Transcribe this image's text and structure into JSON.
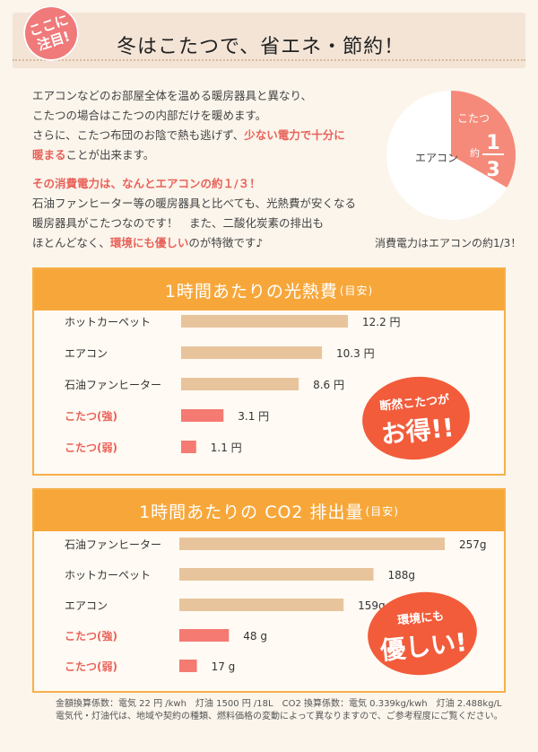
{
  "header": {
    "badge_line1": "ここに",
    "badge_line2": "注目!",
    "title": "冬はこたつで、省エネ・節約！"
  },
  "intro": {
    "p1_l1": "エアコンなどのお部屋全体を温める暖房器具と異なり、",
    "p1_l2": "こたつの場合はこたつの内部だけを暖めます。",
    "p1_l3a": "さらに、こたつ布団のお陰で熱も逃げず、",
    "p1_l3b": "少ない電力で十分に",
    "p1_l4a": "暖まる",
    "p1_l4b": "ことが出来ます。",
    "p2_l1": "その消費電力は、なんとエアコンの約１/３！",
    "p2_l2": "石油ファンヒーター等の暖房器具と比べても、光熱費が安くなる",
    "p2_l3": "暖房器具がこたつなのです！　また、二酸化炭素の排出も",
    "p2_l4a": "ほとんどなく、",
    "p2_l4b": "環境にも優しい",
    "p2_l4c": "のが特徴です♪"
  },
  "pie": {
    "aircon_label": "エアコン",
    "kotatsu_label": "こたつ",
    "approx": "約",
    "numerator": "1",
    "denominator": "3",
    "caption": "消費電力はエアコンの約1/3！",
    "kotatsu_color": "#f58a7a",
    "aircon_color": "#ffffff"
  },
  "chart_data": [
    {
      "type": "bar",
      "title": "1時間あたりの光熱費",
      "title_suffix": "(目安)",
      "categories": [
        "ホットカーペット",
        "エアコン",
        "石油ファンヒーター",
        "こたつ(強)",
        "こたつ(弱)"
      ],
      "values": [
        12.2,
        10.3,
        8.6,
        3.1,
        1.1
      ],
      "value_labels": [
        "12.2 円",
        "10.3 円",
        "8.6 円",
        "3.1 円",
        "1.1 円"
      ],
      "highlight": [
        false,
        false,
        false,
        true,
        true
      ],
      "bar_color": "#e8c49c",
      "highlight_color": "#f47a72",
      "callout_line1": "断然こたつが",
      "callout_line2": "お得!!"
    },
    {
      "type": "bar",
      "title": "1時間あたりの CO2 排出量",
      "title_suffix": "(目安)",
      "categories": [
        "石油ファンヒーター",
        "ホットカーペット",
        "エアコン",
        "こたつ(強)",
        "こたつ(弱)"
      ],
      "values": [
        257,
        188,
        159,
        48,
        17
      ],
      "value_labels": [
        "257g",
        "188g",
        "159g",
        "48 g",
        "17 g"
      ],
      "highlight": [
        false,
        false,
        false,
        true,
        true
      ],
      "bar_color": "#e8c49c",
      "highlight_color": "#f47a72",
      "callout_line1": "環境にも",
      "callout_line2": "優しい!"
    }
  ],
  "footer": {
    "line1": "金額換算係数：電気 22 円 /kwh　灯油 1500 円 /18L　CO2 換算係数：電気 0.339kg/kwh　灯油 2.488kg/L",
    "line2": "電気代・灯油代は、地域や契約の種類、燃料価格の変動によって異なりますので、ご参考程度にご覧ください。"
  }
}
